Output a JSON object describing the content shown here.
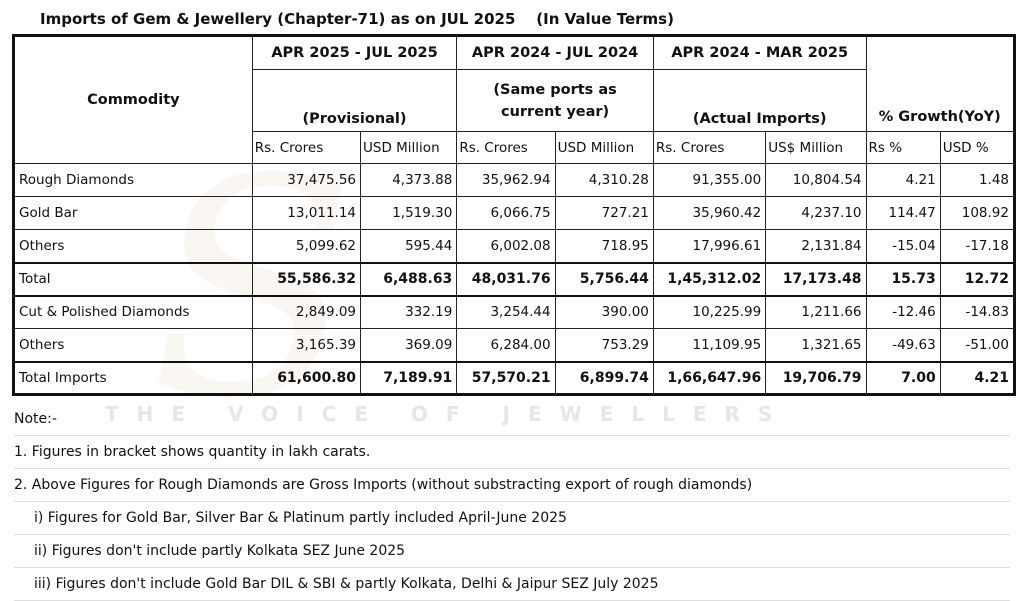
{
  "title": "Imports of Gem & Jewellery (Chapter-71) as on JUL 2025    (In Value Terms)",
  "header": {
    "commodity": "Commodity",
    "periods": [
      "APR 2025 - JUL 2025",
      "APR 2024 - JUL 2024",
      "APR 2024 - MAR 2025"
    ],
    "period_notes": [
      "(Provisional)",
      "(Same ports as current year)",
      "(Actual Imports)"
    ],
    "growth": "% Growth(YoY)",
    "subheaders": [
      "Rs. Crores",
      "USD Million",
      "Rs. Crores",
      "USD Million",
      "Rs. Crores",
      "US$ Million",
      "Rs %",
      "USD %"
    ]
  },
  "rows": [
    {
      "name": "Rough Diamonds",
      "values": [
        "37,475.56",
        "4,373.88",
        "35,962.94",
        "4,310.28",
        "91,355.00",
        "10,804.54",
        "4.21",
        "1.48"
      ]
    },
    {
      "name": "Gold Bar",
      "values": [
        "13,011.14",
        "1,519.30",
        "6,066.75",
        "727.21",
        "35,960.42",
        "4,237.10",
        "114.47",
        "108.92"
      ]
    },
    {
      "name": "Others",
      "values": [
        "5,099.62",
        "595.44",
        "6,002.08",
        "718.95",
        "17,996.61",
        "2,131.84",
        "-15.04",
        "-17.18"
      ]
    },
    {
      "name": "Total",
      "values": [
        "55,586.32",
        "6,488.63",
        "48,031.76",
        "5,756.44",
        "1,45,312.02",
        "17,173.48",
        "15.73",
        "12.72"
      ]
    },
    {
      "name": "Cut & Polished Diamonds",
      "values": [
        "2,849.09",
        "332.19",
        "3,254.44",
        "390.00",
        "10,225.99",
        "1,211.66",
        "-12.46",
        "-14.83"
      ]
    },
    {
      "name": "Others",
      "values": [
        "3,165.39",
        "369.09",
        "6,284.00",
        "753.29",
        "11,109.95",
        "1,321.65",
        "-49.63",
        "-51.00"
      ]
    },
    {
      "name": "Total Imports",
      "values": [
        "61,600.80",
        "7,189.91",
        "57,570.21",
        "6,899.74",
        "1,66,647.96",
        "19,706.79",
        "7.00",
        "4.21"
      ]
    }
  ],
  "notes": [
    "Note:-",
    "1. Figures in bracket shows quantity in lakh carats.",
    "2. Above Figures for Rough Diamonds are Gross Imports (without substracting export of rough diamonds)",
    "i) Figures for Gold Bar, Silver Bar & Platinum partly included  April-June  2025",
    "ii) Figures don't include partly  Kolkata SEZ  June 2025",
    "iii) Figures don't include  Gold Bar DIL  & SBI &  partly Kolkata, Delhi & Jaipur SEZ July  2025"
  ],
  "watermark": {
    "logo": "SVAR",
    "tagline": "THE VOICE OF JEWELLERS"
  }
}
